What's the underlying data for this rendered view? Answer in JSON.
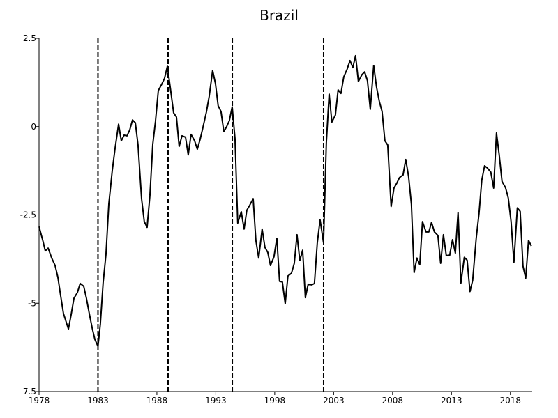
{
  "chart_data": {
    "type": "line",
    "title": "Brazil",
    "color": "#000000",
    "x": [
      1978.0,
      1978.36,
      1978.53,
      1978.77,
      1979.07,
      1979.36,
      1979.6,
      1979.83,
      1980.07,
      1980.3,
      1980.49,
      1980.72,
      1980.96,
      1981.25,
      1981.49,
      1981.79,
      1982.02,
      1982.26,
      1982.5,
      1982.73,
      1983.0,
      1983.2,
      1983.44,
      1983.68,
      1983.92,
      1984.21,
      1984.45,
      1984.75,
      1984.98,
      1985.22,
      1985.46,
      1985.69,
      1985.93,
      1986.17,
      1986.4,
      1986.7,
      1986.93,
      1987.17,
      1987.41,
      1987.65,
      1987.88,
      1988.12,
      1988.41,
      1988.65,
      1988.89,
      1989.13,
      1989.42,
      1989.66,
      1989.89,
      1990.13,
      1990.43,
      1990.66,
      1990.9,
      1991.2,
      1991.43,
      1991.67,
      1991.91,
      1992.2,
      1992.44,
      1992.73,
      1992.97,
      1993.2,
      1993.44,
      1993.68,
      1993.92,
      1994.15,
      1994.39,
      1994.63,
      1994.86,
      1995.16,
      1995.4,
      1995.63,
      1995.87,
      1996.17,
      1996.4,
      1996.64,
      1996.93,
      1997.17,
      1997.41,
      1997.64,
      1997.94,
      1998.18,
      1998.41,
      1998.65,
      1998.89,
      1999.12,
      1999.42,
      1999.66,
      1999.89,
      2000.13,
      2000.37,
      2000.6,
      2000.84,
      2001.14,
      2001.37,
      2001.61,
      2001.85,
      2002.14,
      2002.38,
      2002.62,
      2002.85,
      2003.15,
      2003.38,
      2003.62,
      2003.86,
      2004.15,
      2004.39,
      2004.63,
      2004.86,
      2005.1,
      2005.4,
      2005.63,
      2005.87,
      2006.11,
      2006.4,
      2006.64,
      2006.88,
      2007.11,
      2007.35,
      2007.59,
      2007.88,
      2008.12,
      2008.36,
      2008.59,
      2008.89,
      2009.12,
      2009.36,
      2009.6,
      2009.83,
      2010.07,
      2010.31,
      2010.54,
      2010.84,
      2011.08,
      2011.31,
      2011.55,
      2011.85,
      2012.08,
      2012.32,
      2012.56,
      2012.85,
      2013.09,
      2013.33,
      2013.56,
      2013.8,
      2014.09,
      2014.33,
      2014.57,
      2014.8,
      2015.1,
      2015.34,
      2015.57,
      2015.81,
      2016.05,
      2016.34,
      2016.58,
      2016.82,
      2017.05,
      2017.29,
      2017.59,
      2017.82,
      2018.06,
      2018.3,
      2018.59,
      2018.83,
      2019.07,
      2019.3,
      2019.54,
      2019.78
    ],
    "values": [
      -2.83,
      -3.28,
      -3.52,
      -3.44,
      -3.72,
      -3.93,
      -4.27,
      -4.78,
      -5.29,
      -5.53,
      -5.73,
      -5.33,
      -4.86,
      -4.7,
      -4.44,
      -4.52,
      -4.86,
      -5.29,
      -5.69,
      -6.02,
      -6.22,
      -5.59,
      -4.41,
      -3.61,
      -2.19,
      -1.25,
      -0.62,
      0.07,
      -0.4,
      -0.24,
      -0.26,
      -0.1,
      0.19,
      0.11,
      -0.52,
      -2.04,
      -2.69,
      -2.85,
      -1.94,
      -0.5,
      0.15,
      1.02,
      1.2,
      1.37,
      1.71,
      1.12,
      0.39,
      0.27,
      -0.56,
      -0.26,
      -0.3,
      -0.8,
      -0.22,
      -0.4,
      -0.64,
      -0.36,
      -0.02,
      0.41,
      0.86,
      1.59,
      1.22,
      0.59,
      0.43,
      -0.14,
      0.0,
      0.17,
      0.56,
      -0.34,
      -2.73,
      -2.41,
      -2.9,
      -2.37,
      -2.23,
      -2.04,
      -3.22,
      -3.72,
      -2.9,
      -3.42,
      -3.56,
      -3.93,
      -3.68,
      -3.16,
      -4.38,
      -4.4,
      -5.01,
      -4.23,
      -4.15,
      -3.87,
      -3.06,
      -3.79,
      -3.5,
      -4.84,
      -4.46,
      -4.48,
      -4.44,
      -3.3,
      -2.64,
      -3.28,
      -0.46,
      0.92,
      0.13,
      0.33,
      1.04,
      0.94,
      1.41,
      1.63,
      1.87,
      1.67,
      2.01,
      1.28,
      1.47,
      1.55,
      1.3,
      0.49,
      1.73,
      1.12,
      0.71,
      0.43,
      -0.4,
      -0.52,
      -2.26,
      -1.74,
      -1.6,
      -1.44,
      -1.37,
      -0.93,
      -1.41,
      -2.2,
      -4.13,
      -3.72,
      -3.91,
      -2.69,
      -2.98,
      -2.98,
      -2.71,
      -2.98,
      -3.08,
      -3.87,
      -3.06,
      -3.65,
      -3.64,
      -3.2,
      -3.58,
      -2.43,
      -4.43,
      -3.7,
      -3.78,
      -4.67,
      -4.35,
      -3.16,
      -2.45,
      -1.52,
      -1.11,
      -1.17,
      -1.29,
      -1.74,
      -0.18,
      -0.8,
      -1.55,
      -1.73,
      -2.02,
      -2.69,
      -3.84,
      -2.3,
      -2.4,
      -3.95,
      -4.29,
      -3.22,
      -3.38
    ],
    "vlines": [
      1983.0,
      1988.95,
      1994.4,
      2002.15
    ],
    "xlim": [
      1978,
      2019.85
    ],
    "ylim": [
      -7.5,
      2.5
    ],
    "xticks": [
      1978,
      1983,
      1988,
      1993,
      1998,
      2003,
      2008,
      2013,
      2018
    ],
    "yticks": [
      2.5,
      0,
      -2.5,
      -5,
      -7.5
    ]
  }
}
